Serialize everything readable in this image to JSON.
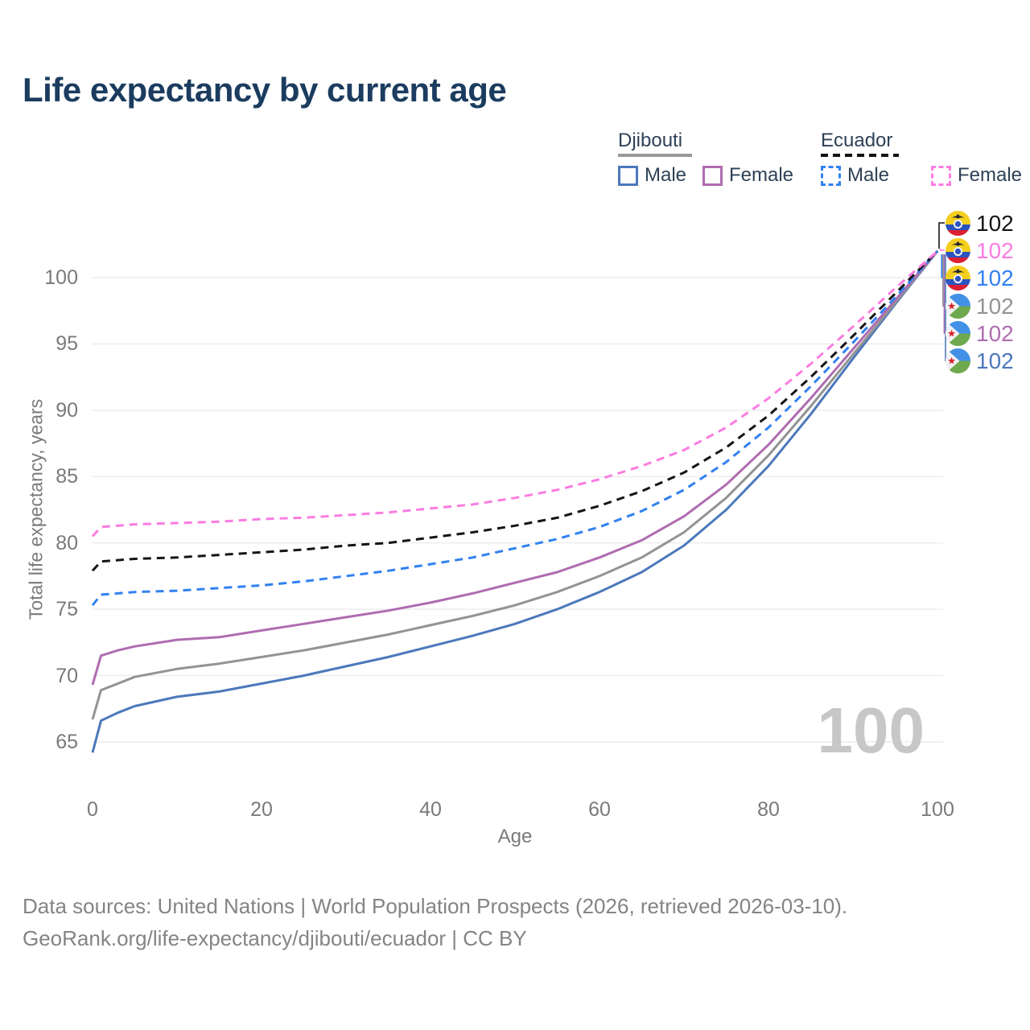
{
  "title": "Life expectancy by current age",
  "legend": {
    "groups": [
      {
        "country": "Djibouti",
        "line_style": "solid",
        "underline_color": "#999999",
        "items": [
          {
            "label": "Male",
            "color": "#4c78bb"
          },
          {
            "label": "Female",
            "color": "#af6cb0"
          }
        ]
      },
      {
        "country": "Ecuador",
        "line_style": "dashed",
        "underline_color": "#141414",
        "items": [
          {
            "label": "Male",
            "color": "#3181f2"
          },
          {
            "label": "Female",
            "color": "#fb7ce1"
          }
        ]
      }
    ]
  },
  "chart_data": {
    "type": "line",
    "title": "Life expectancy by current age",
    "xlabel": "Age",
    "ylabel": "Total life expectancy, years",
    "xticks": [
      0,
      20,
      40,
      60,
      80,
      100
    ],
    "yticks": [
      65,
      70,
      75,
      80,
      85,
      90,
      95,
      100
    ],
    "xlim": [
      0,
      100
    ],
    "ylim": [
      63.5,
      103
    ],
    "grid": "horizontal-only",
    "legend_position": "top-right",
    "x": [
      0,
      1,
      3,
      5,
      10,
      15,
      20,
      25,
      30,
      35,
      40,
      45,
      50,
      55,
      60,
      65,
      70,
      75,
      80,
      85,
      90,
      95,
      100
    ],
    "series": [
      {
        "name": "Djibouti Male",
        "country": "Djibouti",
        "sex": "male",
        "color": "#4c78bb",
        "dashed": false,
        "values": [
          64.2,
          66.6,
          67.2,
          67.7,
          68.4,
          68.8,
          69.4,
          70.0,
          70.7,
          71.4,
          72.2,
          73.0,
          73.9,
          75.0,
          76.3,
          77.8,
          79.8,
          82.5,
          85.8,
          89.7,
          93.9,
          98.0,
          102
        ]
      },
      {
        "name": "Djibouti Both sexes",
        "country": "Djibouti",
        "sex": "both",
        "color": "#939393",
        "dashed": false,
        "values": [
          66.7,
          68.9,
          69.4,
          69.9,
          70.5,
          70.9,
          71.4,
          71.9,
          72.5,
          73.1,
          73.8,
          74.5,
          75.3,
          76.3,
          77.5,
          78.9,
          80.8,
          83.4,
          86.6,
          90.3,
          94.2,
          98.1,
          102
        ]
      },
      {
        "name": "Djibouti Female",
        "country": "Djibouti",
        "sex": "female",
        "color": "#af6cb0",
        "dashed": false,
        "values": [
          69.3,
          71.5,
          71.9,
          72.2,
          72.7,
          72.9,
          73.4,
          73.9,
          74.4,
          74.9,
          75.5,
          76.2,
          77.0,
          77.8,
          78.9,
          80.2,
          82.0,
          84.4,
          87.4,
          90.9,
          94.6,
          98.3,
          102
        ]
      },
      {
        "name": "Ecuador Male",
        "country": "Ecuador",
        "sex": "male",
        "color": "#3181f2",
        "dashed": true,
        "values": [
          75.3,
          76.1,
          76.2,
          76.3,
          76.4,
          76.6,
          76.8,
          77.1,
          77.5,
          77.9,
          78.4,
          78.9,
          79.6,
          80.3,
          81.2,
          82.4,
          84.0,
          86.1,
          88.7,
          91.8,
          95.1,
          98.5,
          102
        ]
      },
      {
        "name": "Ecuador Both sexes",
        "country": "Ecuador",
        "sex": "both",
        "color": "#141414",
        "dashed": true,
        "values": [
          77.9,
          78.6,
          78.7,
          78.8,
          78.9,
          79.1,
          79.3,
          79.5,
          79.8,
          80.0,
          80.4,
          80.8,
          81.3,
          81.9,
          82.8,
          83.9,
          85.3,
          87.2,
          89.6,
          92.5,
          95.6,
          98.8,
          102
        ]
      },
      {
        "name": "Ecuador Female",
        "country": "Ecuador",
        "sex": "female",
        "color": "#fb7ce1",
        "dashed": true,
        "values": [
          80.5,
          81.2,
          81.3,
          81.4,
          81.5,
          81.6,
          81.8,
          81.9,
          82.1,
          82.3,
          82.6,
          82.9,
          83.4,
          84.0,
          84.8,
          85.8,
          87.0,
          88.7,
          90.9,
          93.5,
          96.3,
          99.2,
          102
        ]
      }
    ]
  },
  "end_labels": [
    {
      "flag": "ecuador",
      "series": "Ecuador Both sexes",
      "value": "102",
      "color": "#141414"
    },
    {
      "flag": "ecuador",
      "series": "Ecuador Female",
      "value": "102",
      "color": "#fb7ce1"
    },
    {
      "flag": "ecuador",
      "series": "Ecuador Male",
      "value": "102",
      "color": "#3181f2"
    },
    {
      "flag": "djibouti",
      "series": "Djibouti Both sexes",
      "value": "102",
      "color": "#939393"
    },
    {
      "flag": "djibouti",
      "series": "Djibouti Female",
      "value": "102",
      "color": "#af6cb0"
    },
    {
      "flag": "djibouti",
      "series": "Djibouti Male",
      "value": "102",
      "color": "#4c78bb"
    }
  ],
  "watermark": "100",
  "footer": {
    "line1": "Data sources: United Nations | World Population Prospects (2026, retrieved 2026-03-10).",
    "line2": "GeoRank.org/life-expectancy/djibouti/ecuador | CC BY"
  }
}
